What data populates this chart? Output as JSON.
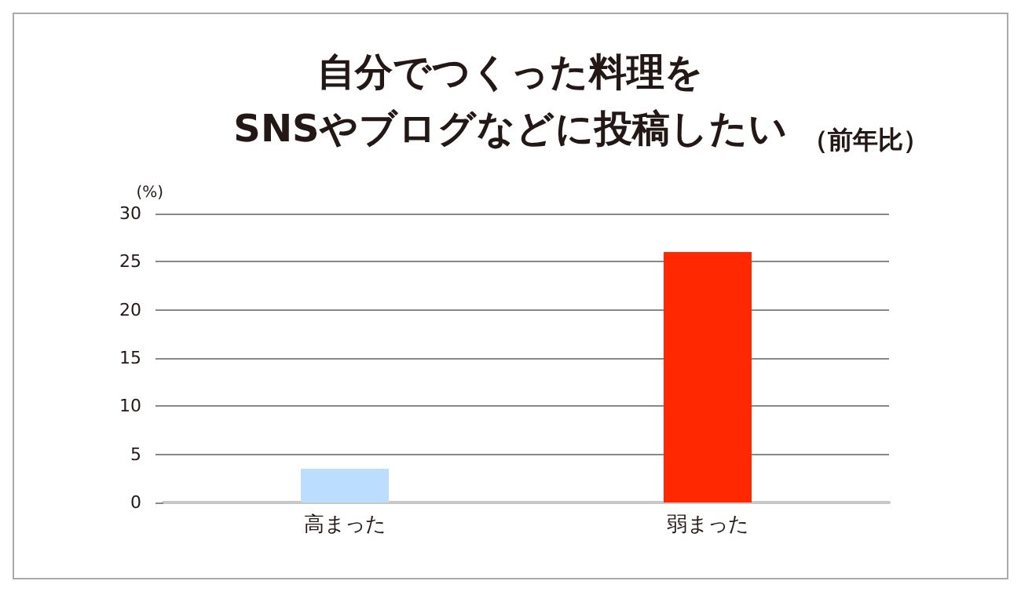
{
  "chart_data": {
    "type": "bar",
    "title": "自分でつくった料理を\nSNSやブログなどに投稿したい",
    "subtitle": "（前年比）",
    "ylabel": "(%)",
    "categories": [
      "高まった",
      "弱まった"
    ],
    "values": [
      3.5,
      26.0
    ],
    "colors": [
      "#bbddff",
      "#ff2800"
    ],
    "ylim": [
      0,
      30
    ],
    "yticks": [
      0,
      5,
      10,
      15,
      20,
      25,
      30
    ],
    "grid": "y"
  }
}
